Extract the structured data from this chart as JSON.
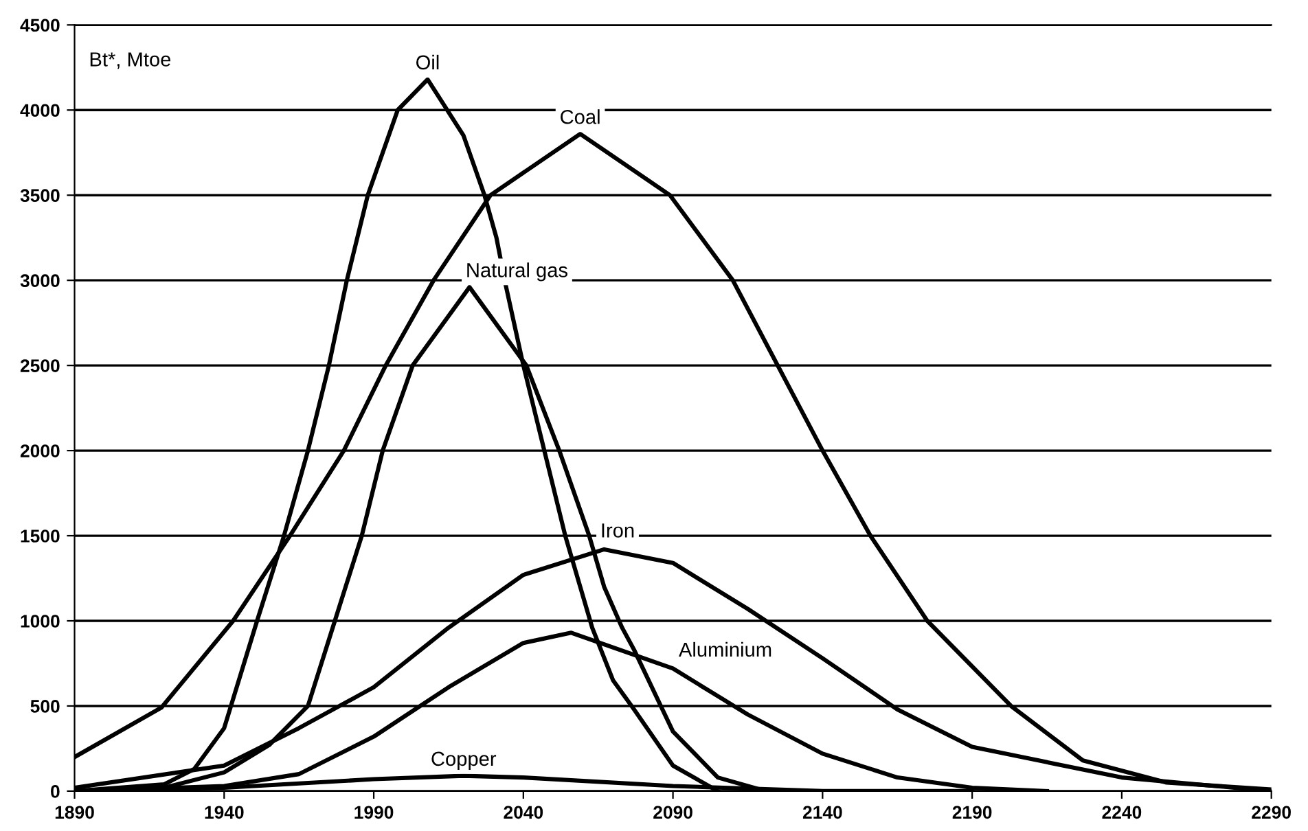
{
  "chart_data": {
    "type": "line",
    "ylabel": "Bt*, Mtoe",
    "xlim": [
      1890,
      2290
    ],
    "xticks": [
      1890,
      1940,
      1990,
      2040,
      2090,
      2140,
      2190,
      2240,
      2290
    ],
    "ylim": [
      0,
      4500
    ],
    "yticks": [
      0,
      500,
      1000,
      1500,
      2000,
      2500,
      3000,
      3500,
      4000,
      4500
    ],
    "grid": "y",
    "legend": false,
    "marker": "none",
    "line_style": "solid",
    "series": [
      {
        "name": "Oil",
        "color": "#000000",
        "x": [
          1890,
          1920,
          1930,
          1940,
          1951,
          1960,
          1968,
          1975,
          1981,
          1988,
          1998,
          2008,
          2020,
          2027,
          2031,
          2034,
          2040,
          2047,
          2054,
          2059,
          2063,
          2070,
          2077,
          2090,
          2105
        ],
        "values": [
          0,
          40,
          130,
          370,
          1000,
          1500,
          2000,
          2500,
          3000,
          3500,
          4000,
          4180,
          3850,
          3500,
          3250,
          2980,
          2500,
          2000,
          1500,
          1200,
          960,
          650,
          480,
          150,
          0
        ]
      },
      {
        "name": "Coal",
        "color": "#000000",
        "x": [
          1890,
          1919,
          1943,
          1962,
          1980,
          1994,
          2010,
          2029,
          2059,
          2089,
          2110,
          2125,
          2140,
          2156,
          2175,
          2203,
          2227,
          2255,
          2290
        ],
        "values": [
          200,
          490,
          1000,
          1500,
          2000,
          2500,
          3000,
          3500,
          3860,
          3500,
          3000,
          2500,
          2000,
          1500,
          1000,
          500,
          180,
          50,
          10
        ]
      },
      {
        "name": "Natural gas",
        "color": "#000000",
        "x": [
          1890,
          1920,
          1940,
          1955,
          1968,
          1977,
          1986,
          1993,
          2003,
          2022,
          2041,
          2052,
          2062,
          2067,
          2073,
          2077,
          2090,
          2105,
          2121
        ],
        "values": [
          0,
          20,
          110,
          270,
          500,
          1000,
          1500,
          2000,
          2500,
          2960,
          2500,
          2000,
          1500,
          1200,
          960,
          830,
          350,
          80,
          0
        ]
      },
      {
        "name": "Iron",
        "color": "#000000",
        "x": [
          1890,
          1940,
          1965,
          1990,
          2015,
          2040,
          2067,
          2090,
          2115,
          2140,
          2165,
          2190,
          2240,
          2290
        ],
        "values": [
          20,
          150,
          370,
          610,
          960,
          1270,
          1420,
          1340,
          1070,
          780,
          480,
          260,
          80,
          0
        ]
      },
      {
        "name": "Aluminium",
        "color": "#000000",
        "x": [
          1890,
          1940,
          1965,
          1990,
          2015,
          2040,
          2056,
          2090,
          2115,
          2140,
          2165,
          2190,
          2215
        ],
        "values": [
          0,
          30,
          100,
          320,
          610,
          870,
          930,
          720,
          450,
          220,
          80,
          20,
          0
        ]
      },
      {
        "name": "Copper",
        "color": "#000000",
        "x": [
          1890,
          1940,
          1990,
          2020,
          2040,
          2090,
          2140,
          2190
        ],
        "values": [
          0,
          20,
          70,
          90,
          80,
          30,
          0,
          0
        ]
      }
    ]
  }
}
